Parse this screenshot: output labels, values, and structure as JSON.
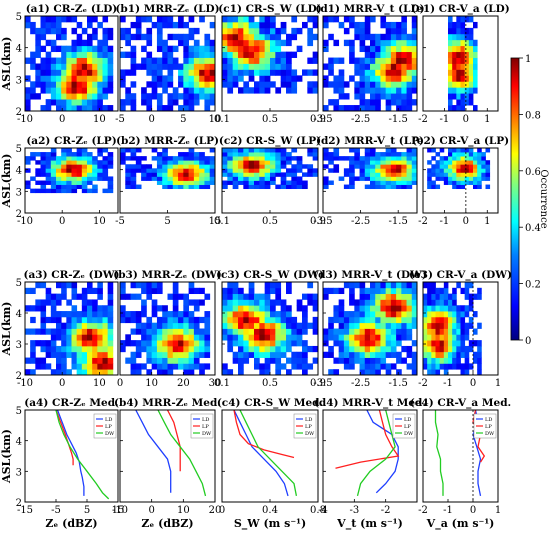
{
  "figure": {
    "shared_ylabel": "ASL(km)",
    "colorbar": {
      "label": "Occurrence",
      "ticks": [
        "0",
        "0.2",
        "0.4",
        "0.6",
        "0.8",
        "1"
      ]
    }
  },
  "colors": {
    "LD": "#1f3fff",
    "LP": "#ff2020",
    "DW": "#22cc22",
    "colormap": [
      "#00007f",
      "#0000ff",
      "#007fff",
      "#00ffff",
      "#7fff7f",
      "#ffff00",
      "#ff7f00",
      "#ff0000",
      "#7f0000"
    ]
  },
  "chart_data": [
    {
      "id": "a1",
      "title": "(a1) CR-Zₑ (LD)",
      "type": "heatmap",
      "ylim": [
        2,
        5
      ],
      "yticks": [
        "2",
        "3",
        "4",
        "5"
      ],
      "xlim": [
        -10,
        15
      ],
      "xticks": [
        "-10",
        "0",
        "10"
      ],
      "xlabel": "",
      "hot": [
        [
          6,
          3.3
        ],
        [
          4,
          2.8
        ]
      ],
      "span": [
        [
          -10,
          14
        ],
        [
          2,
          5
        ]
      ]
    },
    {
      "id": "b1",
      "title": "(b1) MRR-Zₑ (LD)",
      "type": "heatmap",
      "ylim": [
        2,
        5
      ],
      "yticks": [],
      "xlim": [
        -5,
        10
      ],
      "xticks": [
        "-5",
        "0",
        "5",
        "10"
      ],
      "xlabel": "",
      "hot": [
        [
          9,
          3.2
        ]
      ],
      "span": [
        [
          -5,
          10
        ],
        [
          2,
          5
        ]
      ]
    },
    {
      "id": "c1",
      "title": "(c1) CR-S_W (LD)",
      "type": "heatmap",
      "ylim": [
        2,
        5
      ],
      "yticks": [],
      "xlim": [
        0.1,
        0.9
      ],
      "xticks": [
        "0.1",
        "0.5",
        "0.9"
      ],
      "xlabel": "",
      "hot": [
        [
          0.22,
          4.3
        ],
        [
          0.35,
          3.9
        ]
      ],
      "span": [
        [
          0.1,
          0.9
        ],
        [
          2.5,
          5
        ]
      ]
    },
    {
      "id": "d1",
      "title": "(d1) MRR-V_t (LD)",
      "type": "heatmap",
      "ylim": [
        2,
        5
      ],
      "yticks": [],
      "xlim": [
        -3.5,
        -1
      ],
      "xticks": [
        "-3.5",
        "-2.5",
        "-1.5"
      ],
      "xlabel": "",
      "hot": [
        [
          -1.35,
          3.6
        ],
        [
          -1.6,
          3.3
        ]
      ],
      "span": [
        [
          -3.5,
          -1
        ],
        [
          2,
          5
        ]
      ]
    },
    {
      "id": "e1",
      "title": "(e1) CR-V_a (LD)",
      "type": "heatmap",
      "ylim": [
        2,
        5
      ],
      "yticks": [],
      "xlim": [
        -2,
        1.5
      ],
      "xticks": [
        "-2",
        "-1",
        "0",
        "1"
      ],
      "xlabel": "",
      "hot": [
        [
          -0.35,
          3.7
        ],
        [
          -0.35,
          3.2
        ]
      ],
      "span": [
        [
          -0.9,
          0.6
        ],
        [
          2,
          5
        ]
      ]
    },
    {
      "id": "a2",
      "title": "(a2) CR-Zₑ (LP)",
      "type": "heatmap",
      "ylim": [
        2,
        5
      ],
      "yticks": [
        "2",
        "3",
        "4",
        "5"
      ],
      "xlim": [
        -10,
        15
      ],
      "xticks": [
        "-10",
        "0",
        "10"
      ],
      "xlabel": "",
      "hot": [
        [
          3,
          4.0
        ]
      ],
      "span": [
        [
          -10,
          14
        ],
        [
          3,
          5
        ]
      ]
    },
    {
      "id": "b2",
      "title": "(b2) MRR-Zₑ (LP)",
      "type": "heatmap",
      "ylim": [
        2,
        5
      ],
      "yticks": [],
      "xlim": [
        -5,
        15
      ],
      "xticks": [
        "-5",
        "5",
        "15"
      ],
      "xlabel": "",
      "hot": [
        [
          9,
          3.8
        ]
      ],
      "span": [
        [
          -5,
          15
        ],
        [
          3.1,
          5
        ]
      ]
    },
    {
      "id": "c2",
      "title": "(c2) CR-S_W (LP)",
      "type": "heatmap",
      "ylim": [
        2,
        5
      ],
      "yticks": [],
      "xlim": [
        0.1,
        0.9
      ],
      "xticks": [
        "0.1",
        "0.5",
        "0.9"
      ],
      "xlabel": "",
      "hot": [
        [
          0.35,
          4.2
        ]
      ],
      "span": [
        [
          0.1,
          0.9
        ],
        [
          3.2,
          5
        ]
      ]
    },
    {
      "id": "d2",
      "title": "(d2) MRR-V_t (LP)",
      "type": "heatmap",
      "ylim": [
        2,
        5
      ],
      "yticks": [],
      "xlim": [
        -3.5,
        -1
      ],
      "xticks": [
        "-3.5",
        "-2.5",
        "-1.5"
      ],
      "xlabel": "",
      "hot": [
        [
          -1.6,
          4.0
        ]
      ],
      "span": [
        [
          -3.5,
          -1
        ],
        [
          3.1,
          5
        ]
      ]
    },
    {
      "id": "e2",
      "title": "(e2) CR-V_a (LP)",
      "type": "heatmap",
      "ylim": [
        2,
        5
      ],
      "yticks": [],
      "xlim": [
        -2,
        1.5
      ],
      "xticks": [
        "-2",
        "-1",
        "0",
        "1"
      ],
      "xlabel": "",
      "hot": [
        [
          -0.1,
          4.1
        ]
      ],
      "span": [
        [
          -1.8,
          1.2
        ],
        [
          3.2,
          5
        ]
      ]
    },
    {
      "id": "a3",
      "title": "(a3) CR-Zₑ (DW)",
      "type": "heatmap",
      "ylim": [
        2,
        5
      ],
      "yticks": [
        "2",
        "3",
        "4",
        "5"
      ],
      "xlim": [
        -10,
        15
      ],
      "xticks": [
        "-10",
        "0",
        "10"
      ],
      "xlabel": "",
      "hot": [
        [
          11,
          2.4
        ],
        [
          8,
          3.2
        ]
      ],
      "span": [
        [
          -10,
          14
        ],
        [
          2,
          5
        ]
      ]
    },
    {
      "id": "b3",
      "title": "(b3) MRR-Zₑ (DW)",
      "type": "heatmap",
      "ylim": [
        2,
        5
      ],
      "yticks": [],
      "xlim": [
        0,
        30
      ],
      "xticks": [
        "0",
        "10",
        "20",
        "30"
      ],
      "xlabel": "",
      "hot": [
        [
          18,
          3.0
        ]
      ],
      "span": [
        [
          0,
          28
        ],
        [
          2,
          5
        ]
      ]
    },
    {
      "id": "c3",
      "title": "(c3) CR-S_W (DW)",
      "type": "heatmap",
      "ylim": [
        2,
        5
      ],
      "yticks": [],
      "xlim": [
        0.1,
        0.9
      ],
      "xticks": [
        "0.1",
        "0.5",
        "0.9"
      ],
      "xlabel": "",
      "hot": [
        [
          0.3,
          3.8
        ],
        [
          0.45,
          3.3
        ]
      ],
      "span": [
        [
          0.1,
          0.9
        ],
        [
          2,
          5
        ]
      ]
    },
    {
      "id": "d3",
      "title": "(d3) MRR-V_t (DW)",
      "type": "heatmap",
      "ylim": [
        2,
        5
      ],
      "yticks": [],
      "xlim": [
        -3.5,
        -1
      ],
      "xticks": [
        "-3.5",
        "-2.5",
        "-1.5"
      ],
      "xlabel": "",
      "hot": [
        [
          -1.6,
          4.2
        ],
        [
          -2.3,
          3.2
        ]
      ],
      "span": [
        [
          -3.5,
          -1
        ],
        [
          2,
          5
        ]
      ]
    },
    {
      "id": "e3",
      "title": "(e3) CR-V_a (DW)",
      "type": "heatmap",
      "ylim": [
        2,
        5
      ],
      "yticks": [],
      "xlim": [
        -2,
        1
      ],
      "xticks": [
        "-2",
        "-1",
        "0",
        "1"
      ],
      "xlabel": "",
      "hot": [
        [
          -1.4,
          3.6
        ],
        [
          -1.4,
          3.0
        ]
      ],
      "span": [
        [
          -2,
          0.3
        ],
        [
          2,
          5
        ]
      ]
    },
    {
      "id": "a4",
      "title": "(a4) CR-Zₑ Med.",
      "type": "line",
      "ylim": [
        2,
        5
      ],
      "yticks": [
        "2",
        "3",
        "4",
        "5"
      ],
      "xlim": [
        -15,
        15
      ],
      "xticks": [
        "-15",
        "-5",
        "5",
        "15"
      ],
      "xlabel": "Zₑ (dBZ)",
      "legend": [
        "LD",
        "LP",
        "DW"
      ],
      "series": [
        {
          "name": "LD",
          "points": [
            [
              -4.5,
              5
            ],
            [
              -3,
              4.6
            ],
            [
              -1.5,
              4.2
            ],
            [
              0,
              3.9
            ],
            [
              1.5,
              3.6
            ],
            [
              2.5,
              3.3
            ],
            [
              3,
              3.0
            ],
            [
              3.5,
              2.8
            ],
            [
              4,
              2.5
            ],
            [
              4,
              2.2
            ]
          ]
        },
        {
          "name": "LP",
          "points": [
            [
              -5,
              5
            ],
            [
              -3.5,
              4.6
            ],
            [
              -2,
              4.2
            ],
            [
              -1,
              3.9
            ],
            [
              0,
              3.6
            ],
            [
              0.5,
              3.4
            ],
            [
              0.5,
              3.2
            ]
          ]
        },
        {
          "name": "DW",
          "points": [
            [
              -5,
              5
            ],
            [
              -4,
              4.6
            ],
            [
              -2.5,
              4.2
            ],
            [
              -0.5,
              3.8
            ],
            [
              2,
              3.4
            ],
            [
              5,
              3.0
            ],
            [
              8,
              2.6
            ],
            [
              10,
              2.3
            ],
            [
              12,
              2.1
            ]
          ]
        }
      ]
    },
    {
      "id": "b4",
      "title": "(b4) MRR-Zₑ Med.",
      "type": "line",
      "ylim": [
        2,
        5
      ],
      "yticks": [],
      "xlim": [
        -10,
        20
      ],
      "xticks": [
        "-10",
        "0",
        "10",
        "20"
      ],
      "xlabel": "Zₑ (dBZ)",
      "legend": [
        "LD",
        "LP",
        "DW"
      ],
      "series": [
        {
          "name": "LD",
          "points": [
            [
              -5,
              5
            ],
            [
              -3,
              4.6
            ],
            [
              -1,
              4.2
            ],
            [
              2,
              3.8
            ],
            [
              5,
              3.4
            ],
            [
              6,
              3.0
            ],
            [
              6,
              2.6
            ],
            [
              6,
              2.3
            ]
          ]
        },
        {
          "name": "LP",
          "points": [
            [
              5,
              5
            ],
            [
              7,
              4.6
            ],
            [
              8,
              4.2
            ],
            [
              9,
              3.8
            ],
            [
              9,
              3.4
            ],
            [
              9,
              3.0
            ]
          ]
        },
        {
          "name": "DW",
          "points": [
            [
              2,
              5
            ],
            [
              4,
              4.6
            ],
            [
              6,
              4.2
            ],
            [
              9,
              3.8
            ],
            [
              12,
              3.4
            ],
            [
              14,
              3.0
            ],
            [
              16,
              2.6
            ],
            [
              17,
              2.2
            ]
          ]
        }
      ]
    },
    {
      "id": "c4",
      "title": "(c4) CR-S_W Med.",
      "type": "line",
      "ylim": [
        2,
        5
      ],
      "yticks": [],
      "xlim": [
        0,
        0.8
      ],
      "xticks": [
        "0",
        "0.4",
        "0.8"
      ],
      "xlabel": "S_W (m s⁻¹)",
      "legend": [
        "LD",
        "LP",
        "DW"
      ],
      "series": [
        {
          "name": "LD",
          "points": [
            [
              0.1,
              5
            ],
            [
              0.15,
              4.6
            ],
            [
              0.2,
              4.2
            ],
            [
              0.25,
              3.8
            ],
            [
              0.35,
              3.4
            ],
            [
              0.45,
              3.0
            ],
            [
              0.52,
              2.6
            ],
            [
              0.55,
              2.2
            ]
          ]
        },
        {
          "name": "LP",
          "points": [
            [
              0.1,
              5
            ],
            [
              0.12,
              4.6
            ],
            [
              0.15,
              4.2
            ],
            [
              0.22,
              3.9
            ],
            [
              0.35,
              3.7
            ],
            [
              0.5,
              3.55
            ],
            [
              0.6,
              3.45
            ]
          ]
        },
        {
          "name": "DW",
          "points": [
            [
              0.15,
              5
            ],
            [
              0.2,
              4.6
            ],
            [
              0.25,
              4.2
            ],
            [
              0.3,
              3.8
            ],
            [
              0.4,
              3.4
            ],
            [
              0.5,
              3.0
            ],
            [
              0.6,
              2.6
            ],
            [
              0.62,
              2.2
            ]
          ]
        }
      ]
    },
    {
      "id": "d4",
      "title": "(d4) MRR-V_t Med.",
      "type": "line",
      "ylim": [
        2,
        5
      ],
      "yticks": [],
      "xlim": [
        -4,
        -1
      ],
      "xticks": [
        "-4",
        "-3",
        "-2"
      ],
      "xlabel": "V_t (m s⁻¹)",
      "legend": [
        "LD",
        "LP",
        "DW"
      ],
      "series": [
        {
          "name": "LD",
          "points": [
            [
              -2.6,
              5
            ],
            [
              -2.4,
              4.6
            ],
            [
              -1.8,
              4.2
            ],
            [
              -1.6,
              3.8
            ],
            [
              -1.6,
              3.4
            ],
            [
              -1.7,
              3.0
            ],
            [
              -2.0,
              2.6
            ],
            [
              -2.3,
              2.3
            ]
          ]
        },
        {
          "name": "LP",
          "points": [
            [
              -2.2,
              5
            ],
            [
              -2.1,
              4.6
            ],
            [
              -2.0,
              4.2
            ],
            [
              -1.8,
              3.8
            ],
            [
              -1.6,
              3.5
            ],
            [
              -2.8,
              3.3
            ],
            [
              -3.6,
              3.1
            ]
          ]
        },
        {
          "name": "DW",
          "points": [
            [
              -2.0,
              5
            ],
            [
              -1.9,
              4.6
            ],
            [
              -1.8,
              4.2
            ],
            [
              -1.7,
              3.8
            ],
            [
              -2.0,
              3.4
            ],
            [
              -2.5,
              3.0
            ],
            [
              -2.8,
              2.6
            ],
            [
              -2.9,
              2.2
            ]
          ]
        }
      ]
    },
    {
      "id": "e4",
      "title": "(e4) CR-V_a Med.",
      "type": "line",
      "ylim": [
        2,
        5
      ],
      "yticks": [],
      "xlim": [
        -2,
        1
      ],
      "xticks": [
        "-2",
        "-1",
        "0",
        "1"
      ],
      "xlabel": "V_a (m s⁻¹)",
      "legend": [
        "LD",
        "LP",
        "DW"
      ],
      "series": [
        {
          "name": "LD",
          "points": [
            [
              0.1,
              5
            ],
            [
              0.2,
              4.6
            ],
            [
              0.0,
              4.2
            ],
            [
              0.15,
              3.8
            ],
            [
              0.3,
              3.4
            ],
            [
              0.2,
              3.0
            ],
            [
              0.2,
              2.6
            ],
            [
              0.3,
              2.2
            ]
          ]
        },
        {
          "name": "LP",
          "points": [
            [
              0.1,
              5
            ],
            [
              0.0,
              4.6
            ],
            [
              0.3,
              4.2
            ],
            [
              0.2,
              3.8
            ],
            [
              0.45,
              3.5
            ],
            [
              0.3,
              3.3
            ]
          ]
        },
        {
          "name": "DW",
          "points": [
            [
              -1.5,
              5
            ],
            [
              -1.5,
              4.6
            ],
            [
              -1.4,
              4.2
            ],
            [
              -1.45,
              3.8
            ],
            [
              -1.3,
              3.4
            ],
            [
              -1.3,
              3.0
            ],
            [
              -1.2,
              2.6
            ],
            [
              -1.2,
              2.2
            ]
          ]
        }
      ]
    }
  ]
}
